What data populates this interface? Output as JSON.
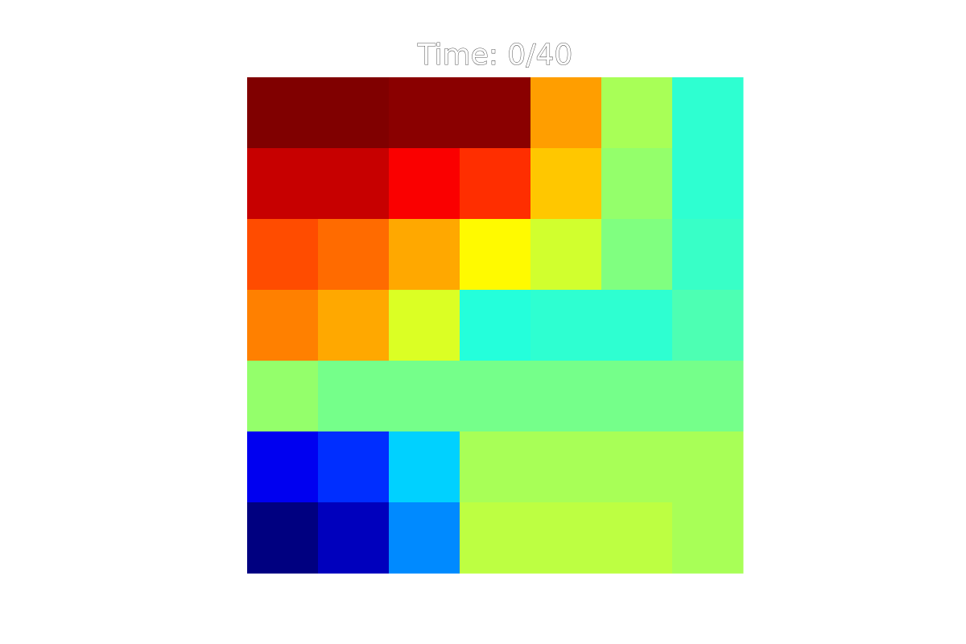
{
  "chart_data": {
    "type": "heatmap",
    "title": "Time: 0/40",
    "rows": 7,
    "cols": 7,
    "colormap": "jet",
    "value_range": [
      0,
      1
    ],
    "axes_visible": false,
    "grid": false,
    "values": [
      [
        1.0,
        1.0,
        0.99,
        0.99,
        0.72,
        0.54,
        0.42
      ],
      [
        0.93,
        0.93,
        0.88,
        0.83,
        0.68,
        0.52,
        0.42
      ],
      [
        0.8,
        0.77,
        0.71,
        0.63,
        0.58,
        0.5,
        0.43
      ],
      [
        0.75,
        0.71,
        0.59,
        0.41,
        0.42,
        0.42,
        0.45
      ],
      [
        0.52,
        0.49,
        0.49,
        0.49,
        0.49,
        0.49,
        0.49
      ],
      [
        0.11,
        0.17,
        0.33,
        0.54,
        0.54,
        0.54,
        0.54
      ],
      [
        0.0,
        0.06,
        0.26,
        0.56,
        0.56,
        0.56,
        0.54
      ]
    ]
  }
}
